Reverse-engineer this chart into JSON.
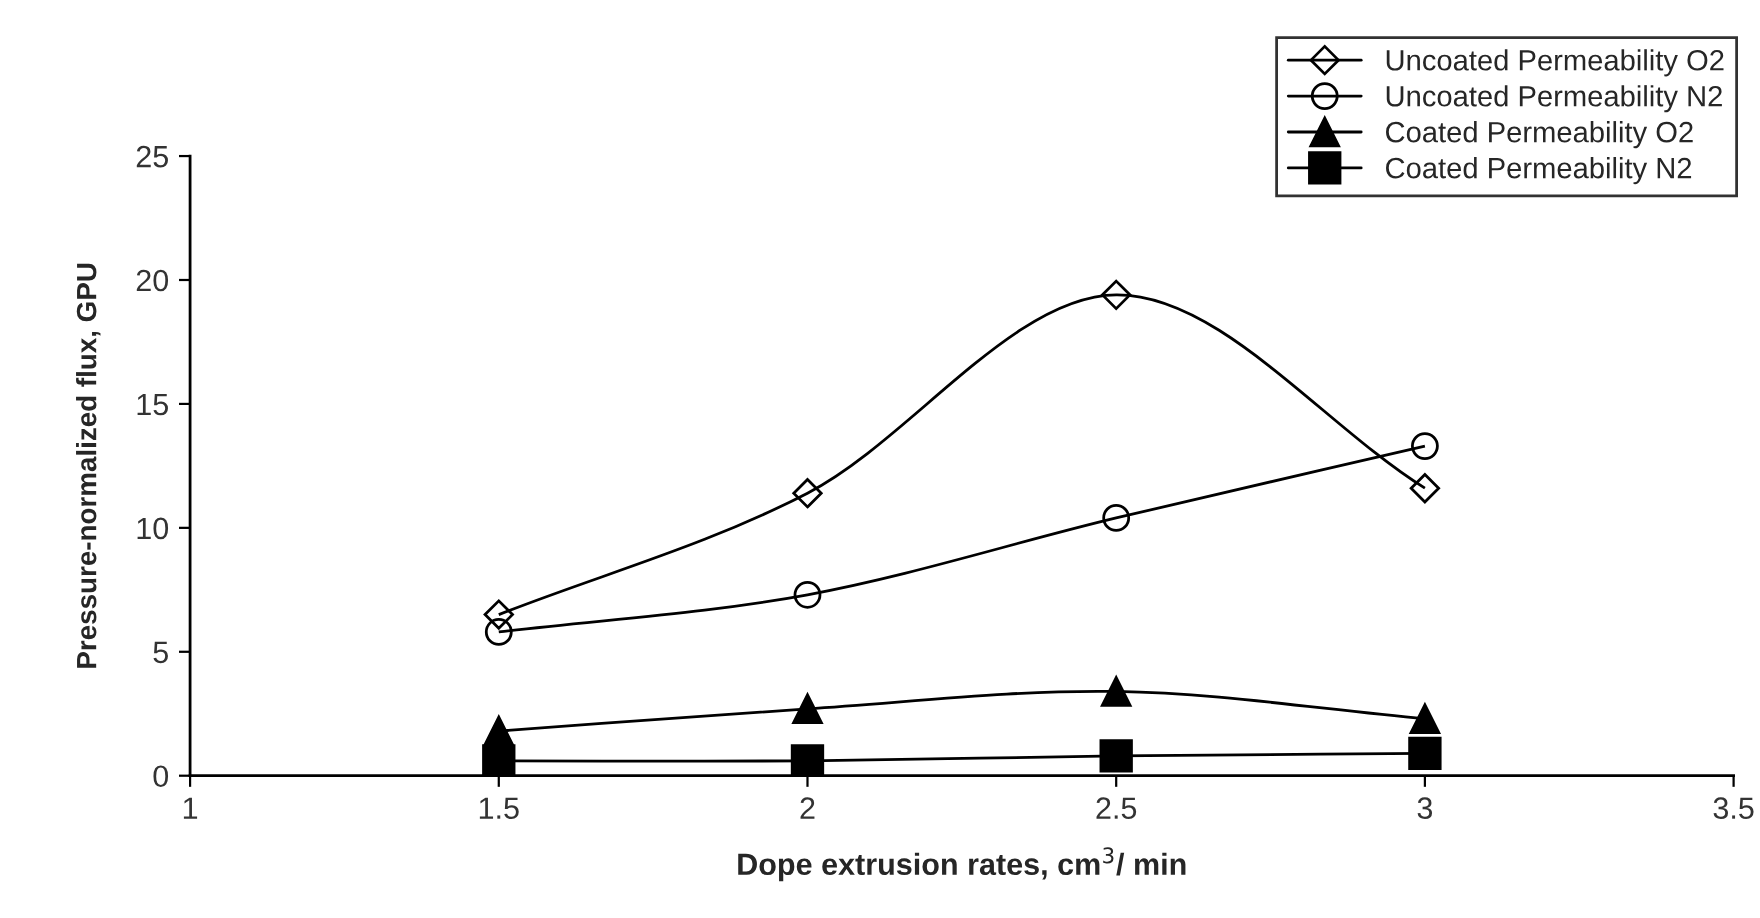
{
  "chart_data": {
    "type": "line",
    "xlabel": "Dope extrusion rates, cm$^{3}$/ min",
    "ylabel": "Pressure-normalized flux, GPU",
    "x": [
      1.5,
      2,
      2.5,
      3
    ],
    "series": [
      {
        "name": "Uncoated Permeability O2",
        "color": "#000000",
        "marker": "diamond",
        "values": [
          6.5,
          11.4,
          19.4,
          11.6
        ]
      },
      {
        "name": "Uncoated Permeability N2",
        "color": "#000000",
        "marker": "circle",
        "values": [
          5.8,
          7.3,
          10.4,
          13.3
        ]
      },
      {
        "name": "Coated Permeability O2",
        "color": "#000000",
        "marker": "triangle",
        "values": [
          1.8,
          2.7,
          3.4,
          2.3
        ]
      },
      {
        "name": "Coated Permeability N2",
        "color": "#000000",
        "marker": "square",
        "values": [
          0.6,
          0.6,
          0.8,
          0.9
        ]
      }
    ],
    "xlim": [
      1,
      3.5
    ],
    "xticks": [
      1,
      1.5,
      2,
      2.5,
      3,
      3.5
    ],
    "ylim": [
      0,
      25
    ],
    "yticks": [
      0,
      5,
      10,
      15,
      20,
      25
    ],
    "grid": false,
    "legend": "top right",
    "line_style": "solid"
  }
}
